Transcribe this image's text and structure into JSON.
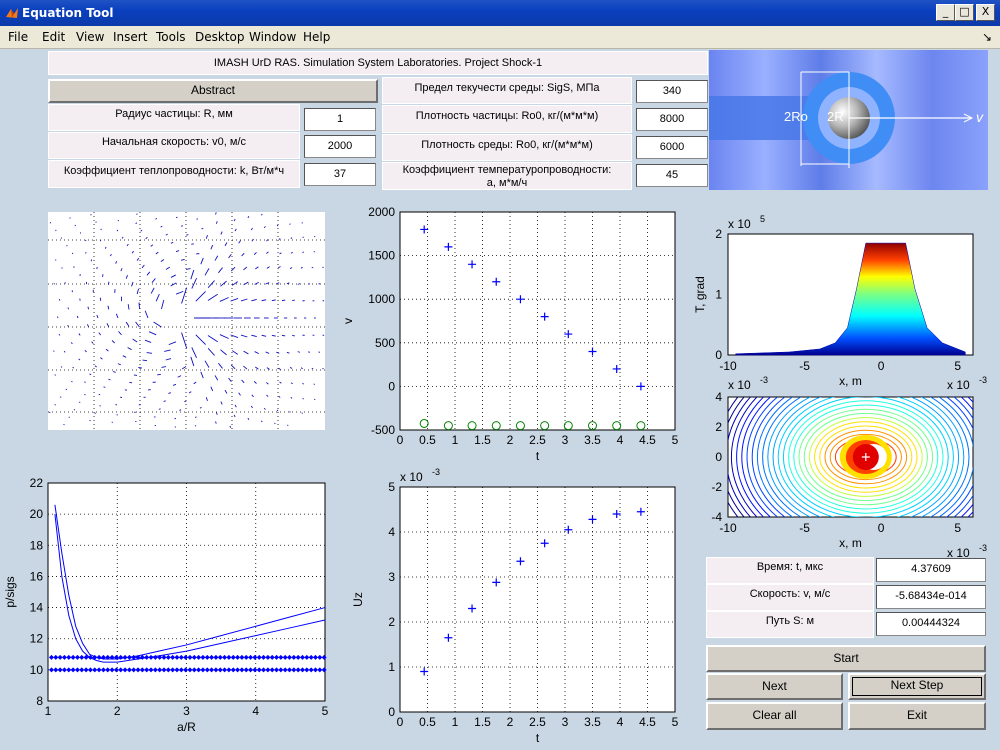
{
  "window": {
    "title": "Equation Tool",
    "min": "_",
    "max": "□",
    "close": "X",
    "dock": "↘"
  },
  "menu": [
    "File",
    "Edit",
    "View",
    "Insert",
    "Tools",
    "Desktop",
    "Window",
    "Help"
  ],
  "header": "IMASH UrD RAS. Simulation System Laboratories.  Project Shock-1",
  "abstract_button": "Abstract",
  "params_left": [
    {
      "label": "Радиус частицы:   R, мм",
      "value": "1"
    },
    {
      "label": "Начальная скорость:  v0, м/с",
      "value": "2000"
    },
    {
      "label": "Коэффициент теплопроводности: k, Вт/м*ч",
      "value": "37"
    }
  ],
  "params_right": [
    {
      "label": "Предел текучести среды:   SigS, МПа",
      "value": "340"
    },
    {
      "label": "Плотность частицы:  Ro0, кг/(м*м*м)",
      "value": "8000"
    },
    {
      "label": "Плотность среды:  Ro0, кг/(м*м*м)",
      "value": "6000"
    },
    {
      "label": "Коэффициент температуропроводности:",
      "label2": "a, м*м/ч",
      "value": "45"
    }
  ],
  "schematic": {
    "label_2ro": "2Ro",
    "label_2r": "2R",
    "label_v": "v"
  },
  "readouts": [
    {
      "label": "Время: t, мкс",
      "value": "4.37609"
    },
    {
      "label": "Скорость: v, м/с",
      "value": "-5.68434e-014"
    },
    {
      "label": "Путь S: м",
      "value": "0.00444324"
    }
  ],
  "buttons": {
    "start": "Start",
    "next": "Next",
    "next_step": "Next Step",
    "clear_all": "Clear all",
    "exit": "Exit"
  },
  "colors": {
    "series_blue": "#0000ff",
    "series_green": "#008000",
    "grid": "#000000"
  },
  "chart_data": [
    {
      "type": "scatter",
      "xlabel": "t",
      "ylabel": "v",
      "xlim": [
        0,
        5
      ],
      "ylim": [
        -500,
        2000
      ],
      "xticks": [
        "0",
        "0.5",
        "1",
        "1.5",
        "2",
        "2.5",
        "3",
        "3.5",
        "4",
        "4.5",
        "5"
      ],
      "yticks": [
        "-500",
        "0",
        "500",
        "1000",
        "1500",
        "2000"
      ],
      "series": [
        {
          "marker": "+",
          "color": "#0000ff",
          "x": [
            0.44,
            0.88,
            1.31,
            1.75,
            2.19,
            2.63,
            3.06,
            3.5,
            3.94,
            4.38
          ],
          "y": [
            1800,
            1600,
            1400,
            1200,
            1000,
            800,
            600,
            400,
            200,
            0
          ]
        },
        {
          "marker": "o",
          "color": "#008000",
          "x": [
            0.44,
            0.88,
            1.31,
            1.75,
            2.19,
            2.63,
            3.06,
            3.5,
            3.94,
            4.38
          ],
          "y": [
            -425,
            -450,
            -450,
            -450,
            -450,
            -450,
            -450,
            -450,
            -450,
            -450
          ]
        }
      ]
    },
    {
      "type": "scatter",
      "xlabel": "t",
      "ylabel": "Uz",
      "yexp": "x 10",
      "yexp_power": "-3",
      "xlim": [
        0,
        5
      ],
      "ylim": [
        0,
        5
      ],
      "xticks": [
        "0",
        "0.5",
        "1",
        "1.5",
        "2",
        "2.5",
        "3",
        "3.5",
        "4",
        "4.5",
        "5"
      ],
      "yticks": [
        "0",
        "1",
        "2",
        "3",
        "4",
        "5"
      ],
      "series": [
        {
          "marker": "+",
          "color": "#0000ff",
          "x": [
            0.44,
            0.88,
            1.31,
            1.75,
            2.19,
            2.63,
            3.06,
            3.5,
            3.94,
            4.38
          ],
          "y": [
            0.9,
            1.65,
            2.3,
            2.88,
            3.35,
            3.75,
            4.05,
            4.28,
            4.4,
            4.45
          ]
        }
      ]
    },
    {
      "type": "line",
      "xlabel": "a/R",
      "ylabel": "p/sigs",
      "xlim": [
        1,
        5
      ],
      "ylim": [
        8,
        22
      ],
      "xticks": [
        "1",
        "2",
        "3",
        "4",
        "5"
      ],
      "yticks": [
        "8",
        "10",
        "12",
        "14",
        "16",
        "18",
        "20",
        "22"
      ],
      "series": [
        {
          "color": "#0000ff",
          "x": [
            1.1,
            1.2,
            1.3,
            1.4,
            1.5,
            1.6,
            1.7,
            1.8,
            2.0,
            2.3,
            2.6,
            3.0,
            3.5,
            4.0,
            4.5,
            5.0
          ],
          "y": [
            20.6,
            17.5,
            14.8,
            12.8,
            11.7,
            11.0,
            10.8,
            10.7,
            10.7,
            10.9,
            11.2,
            11.6,
            12.2,
            12.8,
            13.4,
            14.0
          ]
        },
        {
          "color": "#0000ff",
          "x": [
            1.1,
            1.2,
            1.3,
            1.4,
            1.5,
            1.6,
            1.7,
            1.8,
            2.0,
            2.3,
            2.6,
            3.0,
            3.5,
            4.0,
            4.5,
            5.0
          ],
          "y": [
            20.0,
            16.0,
            13.5,
            12.0,
            11.2,
            10.8,
            10.6,
            10.5,
            10.5,
            10.7,
            10.9,
            11.2,
            11.7,
            12.2,
            12.7,
            13.2
          ]
        },
        {
          "color": "#0000ff",
          "marker": "dot",
          "y_const": 10.8
        },
        {
          "color": "#0000ff",
          "marker": "dot",
          "y_const": 10.0
        }
      ]
    },
    {
      "type": "area",
      "xlabel": "x, m",
      "ylabel": "T, grad",
      "yexp": "x 10",
      "yexp_power": "5",
      "xlim": [
        -10,
        6
      ],
      "ylim": [
        0,
        2
      ],
      "xticks": [
        "-10",
        "-5",
        "0",
        "5"
      ],
      "yticks": [
        "0",
        "1",
        "2"
      ],
      "x": [
        -9.5,
        -6,
        -4,
        -3,
        -2.2,
        -1.6,
        -1.0,
        1.6,
        2.2,
        3,
        4,
        5.5
      ],
      "y": [
        0.02,
        0.05,
        0.1,
        0.2,
        0.45,
        1.1,
        1.85,
        1.85,
        1.1,
        0.45,
        0.2,
        0.05
      ]
    },
    {
      "type": "heatmap",
      "xlabel": "x, m",
      "xexp": "x 10",
      "xexp_power": "-3",
      "yexp": "x 10",
      "yexp_power": "-3",
      "xlim": [
        -10,
        6
      ],
      "ylim": [
        -4,
        4
      ],
      "xticks": [
        "-10",
        "-5",
        "0",
        "5"
      ],
      "yticks": [
        "-4",
        "-2",
        "0",
        "2",
        "4"
      ]
    }
  ]
}
